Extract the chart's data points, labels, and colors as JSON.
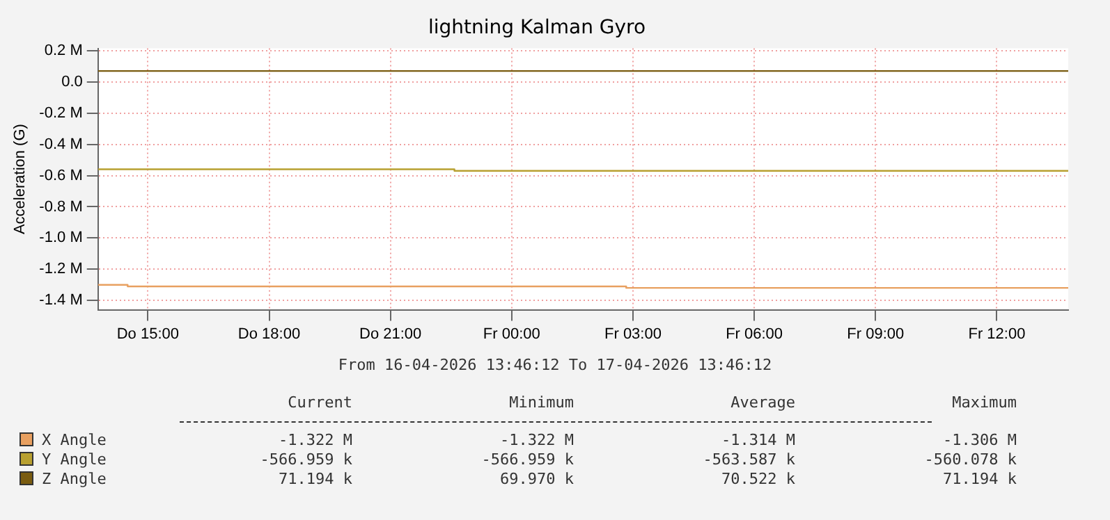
{
  "chart_data": {
    "type": "step",
    "title": "lightning Kalman Gyro",
    "ylabel": "Acceleration (G)",
    "xlim": [
      "2026-04-16T13:46",
      "2026-04-17T13:46"
    ],
    "xticks": [
      {
        "value": "2026-04-16T15:00",
        "label": "Do 15:00"
      },
      {
        "value": "2026-04-16T18:00",
        "label": "Do 18:00"
      },
      {
        "value": "2026-04-16T21:00",
        "label": "Do 21:00"
      },
      {
        "value": "2026-04-17T00:00",
        "label": "Fr 00:00"
      },
      {
        "value": "2026-04-17T03:00",
        "label": "Fr 03:00"
      },
      {
        "value": "2026-04-17T06:00",
        "label": "Fr 06:00"
      },
      {
        "value": "2026-04-17T09:00",
        "label": "Fr 09:00"
      },
      {
        "value": "2026-04-17T12:00",
        "label": "Fr 12:00"
      }
    ],
    "ylim": [
      -1460000,
      215000
    ],
    "yticks": [
      {
        "value": 200000,
        "label": "0.2 M"
      },
      {
        "value": 0,
        "label": "0.0"
      },
      {
        "value": -200000,
        "label": "-0.2 M"
      },
      {
        "value": -400000,
        "label": "-0.4 M"
      },
      {
        "value": -600000,
        "label": "-0.6 M"
      },
      {
        "value": -800000,
        "label": "-0.8 M"
      },
      {
        "value": -1000000,
        "label": "-1.0 M"
      },
      {
        "value": -1200000,
        "label": "-1.2 M"
      },
      {
        "value": -1400000,
        "label": "-1.4 M"
      }
    ],
    "series": [
      {
        "name": "X Angle",
        "color": "#e8a060",
        "x": [
          "2026-04-16T13:46",
          "2026-04-16T14:30",
          "2026-04-17T02:50",
          "2026-04-17T13:46"
        ],
        "values": [
          -1300000,
          -1310000,
          -1320000,
          -1320000
        ]
      },
      {
        "name": "Y Angle",
        "color": "#b8a030",
        "x": [
          "2026-04-16T13:46",
          "2026-04-16T22:35",
          "2026-04-17T13:46"
        ],
        "values": [
          -560000,
          -570000,
          -570000
        ]
      },
      {
        "name": "Z Angle",
        "color": "#7a5c10",
        "x": [
          "2026-04-16T13:46",
          "2026-04-17T13:46"
        ],
        "values": [
          70000,
          70000
        ]
      }
    ],
    "annotations": [
      "From 16-04-2026 13:46:12 To 17-04-2026 13:46:12",
      "Current",
      "Minimum",
      "Average",
      "Maximum",
      "-1.322 M",
      "-1.322 M",
      "-1.314 M",
      "-1.306 M",
      "-566.959 k",
      "-566.959 k",
      "-563.587 k",
      "-560.078 k",
      "71.194 k",
      "69.970 k",
      "70.522 k",
      "71.194 k"
    ],
    "grid": true,
    "legend": "bottom"
  }
}
